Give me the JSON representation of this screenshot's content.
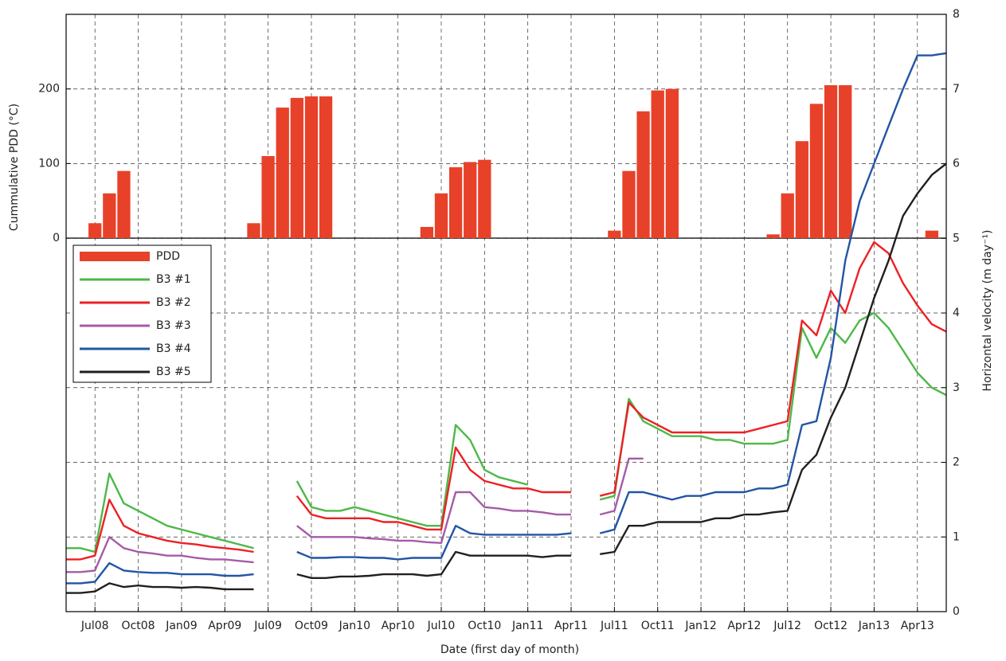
{
  "chart_data": {
    "type": "line",
    "x_label": "Date (first day of month)",
    "y_label": "Cummulative PDD (°C)",
    "y2_label": "Horizontal velocity (m day⁻¹)",
    "xlim": [
      "2008-05",
      "2013-06"
    ],
    "xticks": [
      {
        "value": "2008-07",
        "label": "Jul08"
      },
      {
        "value": "2008-10",
        "label": "Oct08"
      },
      {
        "value": "2009-01",
        "label": "Jan09"
      },
      {
        "value": "2009-04",
        "label": "Apr09"
      },
      {
        "value": "2009-07",
        "label": "Jul09"
      },
      {
        "value": "2009-10",
        "label": "Oct09"
      },
      {
        "value": "2010-01",
        "label": "Jan10"
      },
      {
        "value": "2010-04",
        "label": "Apr10"
      },
      {
        "value": "2010-07",
        "label": "Jul10"
      },
      {
        "value": "2010-10",
        "label": "Oct10"
      },
      {
        "value": "2011-01",
        "label": "Jan11"
      },
      {
        "value": "2011-04",
        "label": "Apr11"
      },
      {
        "value": "2011-07",
        "label": "Jul11"
      },
      {
        "value": "2011-10",
        "label": "Oct11"
      },
      {
        "value": "2012-01",
        "label": "Jan12"
      },
      {
        "value": "2012-04",
        "label": "Apr12"
      },
      {
        "value": "2012-07",
        "label": "Jul12"
      },
      {
        "value": "2012-10",
        "label": "Oct12"
      },
      {
        "value": "2013-01",
        "label": "Jan13"
      },
      {
        "value": "2013-04",
        "label": "Apr13"
      }
    ],
    "ylim": [
      0,
      300
    ],
    "yticks": [
      0,
      100,
      200
    ],
    "y2lim": [
      0,
      8
    ],
    "y2ticks": [
      0,
      1,
      2,
      3,
      4,
      5,
      6,
      7,
      8
    ],
    "grid": true,
    "legend": "upper-left",
    "x": [
      "2008-05",
      "2008-06",
      "2008-07",
      "2008-08",
      "2008-09",
      "2008-10",
      "2008-11",
      "2008-12",
      "2009-01",
      "2009-02",
      "2009-03",
      "2009-04",
      "2009-05",
      "2009-06",
      "2009-07",
      "2009-08",
      "2009-09",
      "2009-10",
      "2009-11",
      "2009-12",
      "2010-01",
      "2010-02",
      "2010-03",
      "2010-04",
      "2010-05",
      "2010-06",
      "2010-07",
      "2010-08",
      "2010-09",
      "2010-10",
      "2010-11",
      "2010-12",
      "2011-01",
      "2011-02",
      "2011-03",
      "2011-04",
      "2011-05",
      "2011-06",
      "2011-07",
      "2011-08",
      "2011-09",
      "2011-10",
      "2011-11",
      "2011-12",
      "2012-01",
      "2012-02",
      "2012-03",
      "2012-04",
      "2012-05",
      "2012-06",
      "2012-07",
      "2012-08",
      "2012-09",
      "2012-10",
      "2012-11",
      "2012-12",
      "2013-01",
      "2013-02",
      "2013-03",
      "2013-04",
      "2013-05",
      "2013-06"
    ],
    "series": [
      {
        "name": "PDD",
        "type": "bar",
        "color": "#e8412a",
        "values": [
          null,
          null,
          20,
          60,
          90,
          null,
          null,
          null,
          null,
          null,
          null,
          null,
          null,
          20,
          110,
          175,
          188,
          190,
          190,
          null,
          null,
          null,
          null,
          null,
          null,
          15,
          60,
          95,
          102,
          105,
          null,
          null,
          null,
          null,
          null,
          null,
          null,
          null,
          10,
          90,
          170,
          198,
          200,
          null,
          null,
          null,
          null,
          null,
          null,
          5,
          60,
          130,
          180,
          205,
          205,
          null,
          null,
          null,
          null,
          null,
          10,
          null
        ]
      },
      {
        "name": "B3 #1",
        "axis": "y2",
        "color": "#4db848",
        "values": [
          0.85,
          0.85,
          0.8,
          1.85,
          1.45,
          1.35,
          1.25,
          1.15,
          1.1,
          1.05,
          1.0,
          0.95,
          0.9,
          0.85,
          null,
          null,
          1.75,
          1.4,
          1.35,
          1.35,
          1.4,
          1.35,
          1.3,
          1.25,
          1.2,
          1.15,
          1.15,
          2.5,
          2.3,
          1.9,
          1.8,
          1.75,
          1.7,
          null,
          null,
          null,
          null,
          1.5,
          1.55,
          2.85,
          2.55,
          2.45,
          2.35,
          2.35,
          2.35,
          2.3,
          2.3,
          2.25,
          2.25,
          2.25,
          2.3,
          3.8,
          3.4,
          3.8,
          3.6,
          3.9,
          4.0,
          3.8,
          3.5,
          3.2,
          3.0,
          2.9
        ]
      },
      {
        "name": "B3 #2",
        "axis": "y2",
        "color": "#ed2024",
        "values": [
          0.7,
          0.7,
          0.75,
          1.5,
          1.15,
          1.05,
          1.0,
          0.95,
          0.92,
          0.9,
          0.87,
          0.85,
          0.83,
          0.8,
          null,
          null,
          1.55,
          1.3,
          1.25,
          1.25,
          1.25,
          1.25,
          1.2,
          1.2,
          1.15,
          1.1,
          1.1,
          2.2,
          1.9,
          1.75,
          1.7,
          1.65,
          1.65,
          1.6,
          1.6,
          1.6,
          null,
          1.55,
          1.6,
          2.8,
          2.6,
          2.5,
          2.4,
          2.4,
          2.4,
          2.4,
          2.4,
          2.4,
          2.45,
          2.5,
          2.55,
          3.9,
          3.7,
          4.3,
          4.0,
          4.6,
          4.95,
          4.8,
          4.4,
          4.1,
          3.85,
          3.75
        ]
      },
      {
        "name": "B3 #3",
        "axis": "y2",
        "color": "#a55ba8",
        "values": [
          0.53,
          0.53,
          0.55,
          1.0,
          0.85,
          0.8,
          0.78,
          0.75,
          0.75,
          0.72,
          0.7,
          0.7,
          0.68,
          0.66,
          null,
          null,
          1.15,
          1.0,
          1.0,
          1.0,
          1.0,
          0.98,
          0.97,
          0.95,
          0.95,
          0.93,
          0.92,
          1.6,
          1.6,
          1.4,
          1.38,
          1.35,
          1.35,
          1.33,
          1.3,
          1.3,
          null,
          1.3,
          1.35,
          2.05,
          2.05,
          null,
          null,
          null,
          null,
          null,
          null,
          null,
          null,
          null,
          null,
          null,
          null,
          null,
          null,
          null,
          null,
          null,
          null,
          null,
          null,
          null
        ]
      },
      {
        "name": "B3 #4",
        "axis": "y2",
        "color": "#2255a4",
        "values": [
          0.38,
          0.38,
          0.4,
          0.65,
          0.55,
          0.53,
          0.52,
          0.52,
          0.5,
          0.5,
          0.5,
          0.48,
          0.48,
          0.5,
          null,
          null,
          0.8,
          0.72,
          0.72,
          0.73,
          0.73,
          0.72,
          0.72,
          0.7,
          0.72,
          0.72,
          0.72,
          1.15,
          1.05,
          1.03,
          1.03,
          1.03,
          1.03,
          1.03,
          1.03,
          1.05,
          null,
          1.05,
          1.1,
          1.6,
          1.6,
          1.55,
          1.5,
          1.55,
          1.55,
          1.6,
          1.6,
          1.6,
          1.65,
          1.65,
          1.7,
          2.5,
          2.55,
          3.4,
          4.7,
          5.5,
          6.0,
          6.5,
          7.0,
          7.45,
          7.45,
          7.48
        ]
      },
      {
        "name": "B3 #5",
        "axis": "y2",
        "color": "#231f20",
        "values": [
          0.25,
          0.25,
          0.27,
          0.38,
          0.33,
          0.35,
          0.33,
          0.33,
          0.32,
          0.33,
          0.32,
          0.3,
          0.3,
          0.3,
          null,
          null,
          0.5,
          0.45,
          0.45,
          0.47,
          0.47,
          0.48,
          0.5,
          0.5,
          0.5,
          0.48,
          0.5,
          0.8,
          0.75,
          0.75,
          0.75,
          0.75,
          0.75,
          0.73,
          0.75,
          0.75,
          null,
          0.77,
          0.8,
          1.15,
          1.15,
          1.2,
          1.2,
          1.2,
          1.2,
          1.25,
          1.25,
          1.3,
          1.3,
          1.33,
          1.35,
          1.9,
          2.1,
          2.6,
          3.0,
          3.6,
          4.2,
          4.7,
          5.3,
          5.6,
          5.85,
          6.0
        ]
      }
    ]
  }
}
